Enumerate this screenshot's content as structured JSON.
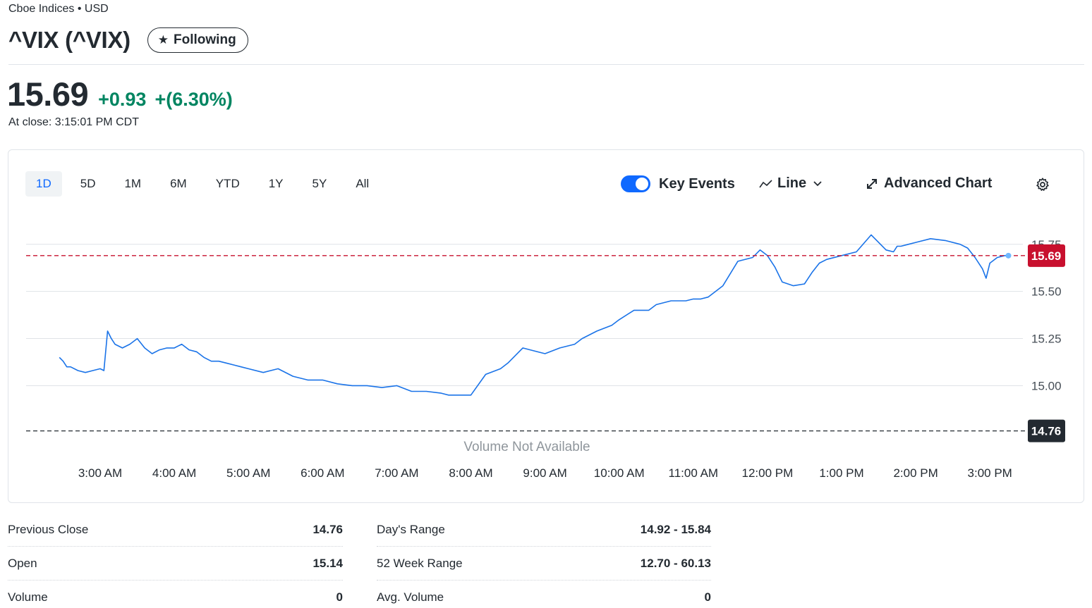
{
  "header": {
    "exchange": "Cboe Indices • USD",
    "title": "^VIX (^VIX)",
    "follow_label": "Following"
  },
  "quote": {
    "price": "15.69",
    "change": "+0.93",
    "change_pct": "+(6.30%)",
    "close_time": "At close: 3:15:01 PM CDT"
  },
  "chart_controls": {
    "ranges": [
      "1D",
      "5D",
      "1M",
      "6M",
      "YTD",
      "1Y",
      "5Y",
      "All"
    ],
    "active_range": "1D",
    "key_events_label": "Key Events",
    "key_events_on": true,
    "chart_type_label": "Line",
    "advanced_chart_label": "Advanced Chart",
    "volume_note": "Volume Not Available"
  },
  "colors": {
    "line": "#1a73e8",
    "positive": "#008561",
    "current_badge": "#c8102e",
    "prev_badge": "#232a31"
  },
  "chart_data": {
    "type": "line",
    "x_ticks": [
      "3:00 AM",
      "4:00 AM",
      "5:00 AM",
      "6:00 AM",
      "7:00 AM",
      "8:00 AM",
      "9:00 AM",
      "10:00 AM",
      "11:00 AM",
      "12:00 PM",
      "1:00 PM",
      "2:00 PM",
      "3:00 PM"
    ],
    "y_ticks": [
      15.0,
      15.25,
      15.5,
      15.75
    ],
    "y_tick_labels": [
      "15.00",
      "15.25",
      "15.50",
      "15.75"
    ],
    "ylim": [
      14.74,
      15.88
    ],
    "xlim_hours": [
      2.2,
      15.4
    ],
    "grid": true,
    "reference_lines": [
      {
        "value": 15.69,
        "label": "15.69",
        "color": "#c8102e"
      },
      {
        "value": 14.76,
        "label": "14.76",
        "color": "#232a31"
      }
    ],
    "series": [
      {
        "x": [
          2.45,
          2.5,
          2.55,
          2.6,
          2.7,
          2.8,
          2.9,
          3.0,
          3.05,
          3.1,
          3.15,
          3.2,
          3.3,
          3.4,
          3.5,
          3.6,
          3.7,
          3.8,
          3.9,
          4.0,
          4.1,
          4.2,
          4.3,
          4.4,
          4.5,
          4.6,
          4.7,
          4.8,
          4.9,
          5.0,
          5.2,
          5.4,
          5.6,
          5.8,
          6.0,
          6.2,
          6.4,
          6.6,
          6.8,
          7.0,
          7.2,
          7.4,
          7.6,
          7.7,
          7.8,
          7.9,
          8.0,
          8.2,
          8.4,
          8.5,
          8.6,
          8.7,
          8.8,
          9.0,
          9.2,
          9.4,
          9.5,
          9.7,
          9.9,
          10.0,
          10.2,
          10.4,
          10.5,
          10.7,
          10.9,
          11.0,
          11.1,
          11.2,
          11.4,
          11.6,
          11.8,
          11.9,
          12.0,
          12.1,
          12.2,
          12.35,
          12.5,
          12.6,
          12.7,
          12.8,
          13.0,
          13.2,
          13.4,
          13.6,
          13.7,
          13.75,
          13.8,
          13.9,
          14.0,
          14.2,
          14.4,
          14.6,
          14.7,
          14.8,
          14.9,
          14.95,
          15.0,
          15.1,
          15.2,
          15.25
        ],
        "y": [
          15.15,
          15.13,
          15.1,
          15.1,
          15.08,
          15.07,
          15.08,
          15.09,
          15.08,
          15.29,
          15.25,
          15.22,
          15.2,
          15.22,
          15.25,
          15.2,
          15.17,
          15.19,
          15.2,
          15.2,
          15.22,
          15.19,
          15.18,
          15.15,
          15.13,
          15.13,
          15.12,
          15.11,
          15.1,
          15.09,
          15.07,
          15.09,
          15.05,
          15.03,
          15.03,
          15.01,
          15.0,
          15.0,
          14.99,
          15.0,
          14.97,
          14.97,
          14.96,
          14.95,
          14.95,
          14.95,
          14.95,
          15.06,
          15.09,
          15.12,
          15.16,
          15.2,
          15.19,
          15.17,
          15.2,
          15.22,
          15.25,
          15.29,
          15.32,
          15.35,
          15.4,
          15.4,
          15.43,
          15.45,
          15.45,
          15.46,
          15.46,
          15.47,
          15.53,
          15.66,
          15.68,
          15.72,
          15.69,
          15.63,
          15.55,
          15.53,
          15.54,
          15.6,
          15.65,
          15.67,
          15.69,
          15.71,
          15.8,
          15.72,
          15.71,
          15.74,
          15.74,
          15.75,
          15.76,
          15.78,
          15.77,
          15.75,
          15.73,
          15.68,
          15.62,
          15.57,
          15.65,
          15.68,
          15.69,
          15.69
        ]
      }
    ]
  },
  "stats": {
    "left": [
      {
        "label": "Previous Close",
        "value": "14.76"
      },
      {
        "label": "Open",
        "value": "15.14"
      },
      {
        "label": "Volume",
        "value": "0"
      }
    ],
    "right": [
      {
        "label": "Day's Range",
        "value": "14.92 - 15.84"
      },
      {
        "label": "52 Week Range",
        "value": "12.70 - 60.13"
      },
      {
        "label": "Avg. Volume",
        "value": "0"
      }
    ]
  }
}
